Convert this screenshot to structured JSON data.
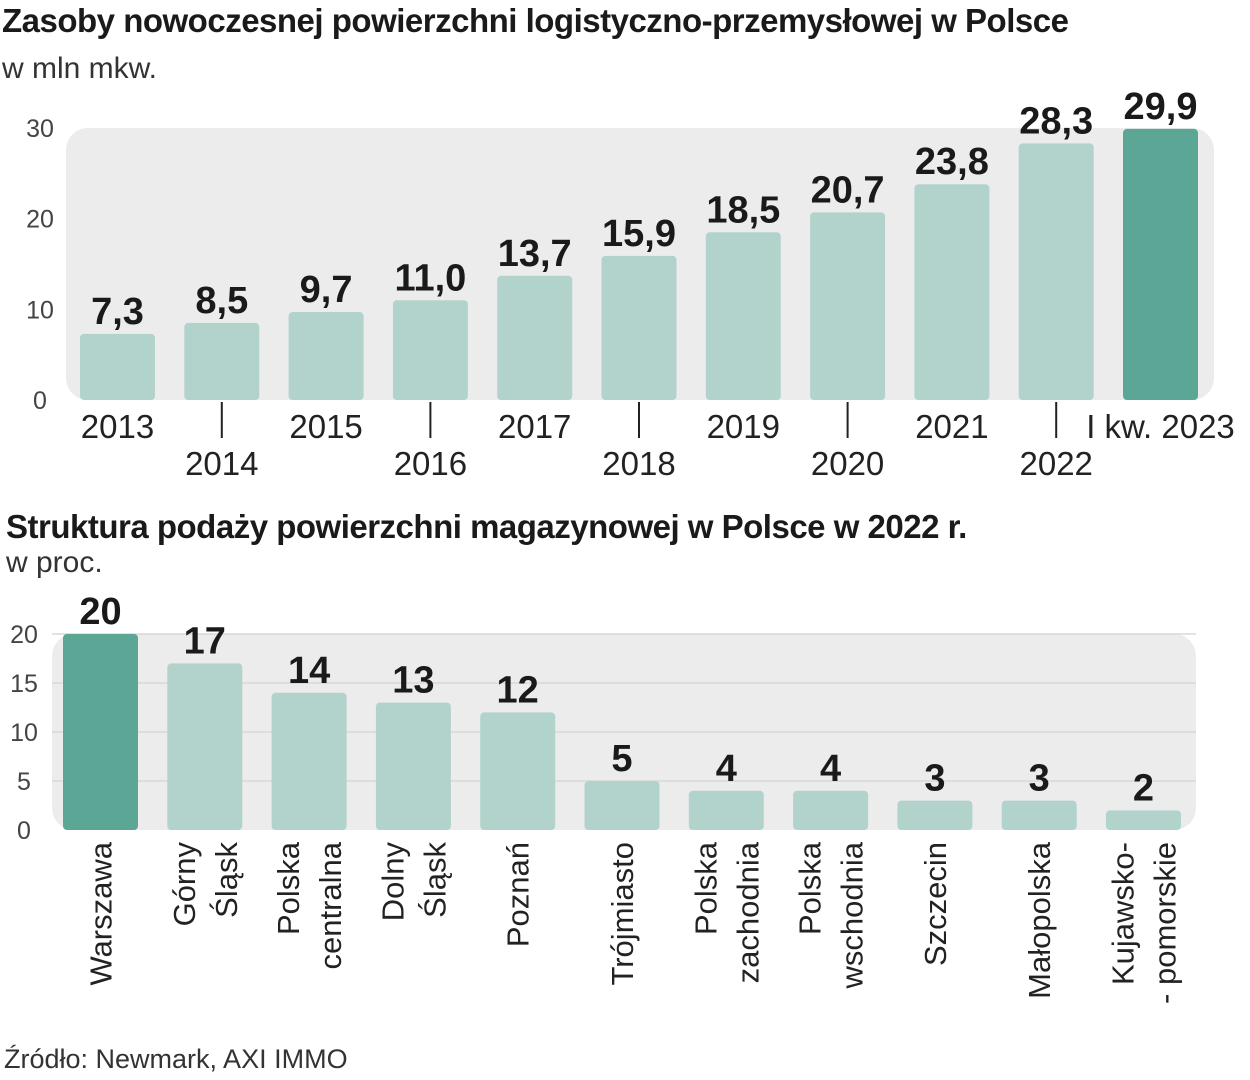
{
  "source": "Źródło: Newmark, AXI IMMO",
  "chart_data": [
    {
      "type": "bar",
      "title": "Zasoby nowoczesnej powierzchni logistyczno-przemysłowej w Polsce",
      "subtitle": "w mln mkw.",
      "categories": [
        "2013",
        "2014",
        "2015",
        "2016",
        "2017",
        "2018",
        "2019",
        "2020",
        "2021",
        "2022",
        "I kw. 2023"
      ],
      "values": [
        7.3,
        8.5,
        9.7,
        11.0,
        13.7,
        15.9,
        18.5,
        20.7,
        23.8,
        28.3,
        29.9
      ],
      "value_labels": [
        "7,3",
        "8,5",
        "9,7",
        "11,0",
        "13,7",
        "15,9",
        "18,5",
        "20,7",
        "23,8",
        "28,3",
        "29,9"
      ],
      "highlight_index": 10,
      "ylim": [
        0,
        30
      ],
      "yticks": [
        "0",
        "10",
        "20",
        "30"
      ],
      "grid": false,
      "colors": {
        "bar": "#b2d3cc",
        "highlight": "#5ba695",
        "panel": "#ececec"
      }
    },
    {
      "type": "bar",
      "title": "Struktura podaży powierzchni magazynowej w Polsce w 2022 r.",
      "subtitle": "w proc.",
      "categories": [
        "Warszawa",
        "Górny Śląsk",
        "Polska centralna",
        "Dolny Śląsk",
        "Poznań",
        "Trójmiasto",
        "Polska zachodnia",
        "Polska wschodnia",
        "Szczecin",
        "Małopolska",
        "Kujawsko- - pomorskie"
      ],
      "category_lines": [
        [
          "Warszawa"
        ],
        [
          "Górny",
          "Śląsk"
        ],
        [
          "Polska",
          "centralna"
        ],
        [
          "Dolny",
          "Śląsk"
        ],
        [
          "Poznań"
        ],
        [
          "Trójmiasto"
        ],
        [
          "Polska",
          "zachodnia"
        ],
        [
          "Polska",
          "wschodnia"
        ],
        [
          "Szczecin"
        ],
        [
          "Małopolska"
        ],
        [
          "Kujawsko-",
          "- pomorskie"
        ]
      ],
      "values": [
        20,
        17,
        14,
        13,
        12,
        5,
        4,
        4,
        3,
        3,
        2
      ],
      "value_labels": [
        "20",
        "17",
        "14",
        "13",
        "12",
        "5",
        "4",
        "4",
        "3",
        "3",
        "2"
      ],
      "highlight_index": 0,
      "ylim": [
        0,
        20
      ],
      "yticks": [
        "0",
        "5",
        "10",
        "15",
        "20"
      ],
      "grid": true,
      "colors": {
        "bar": "#b2d3cc",
        "highlight": "#5ba695",
        "panel": "#ececec",
        "grid": "#d8d8d8"
      }
    }
  ]
}
